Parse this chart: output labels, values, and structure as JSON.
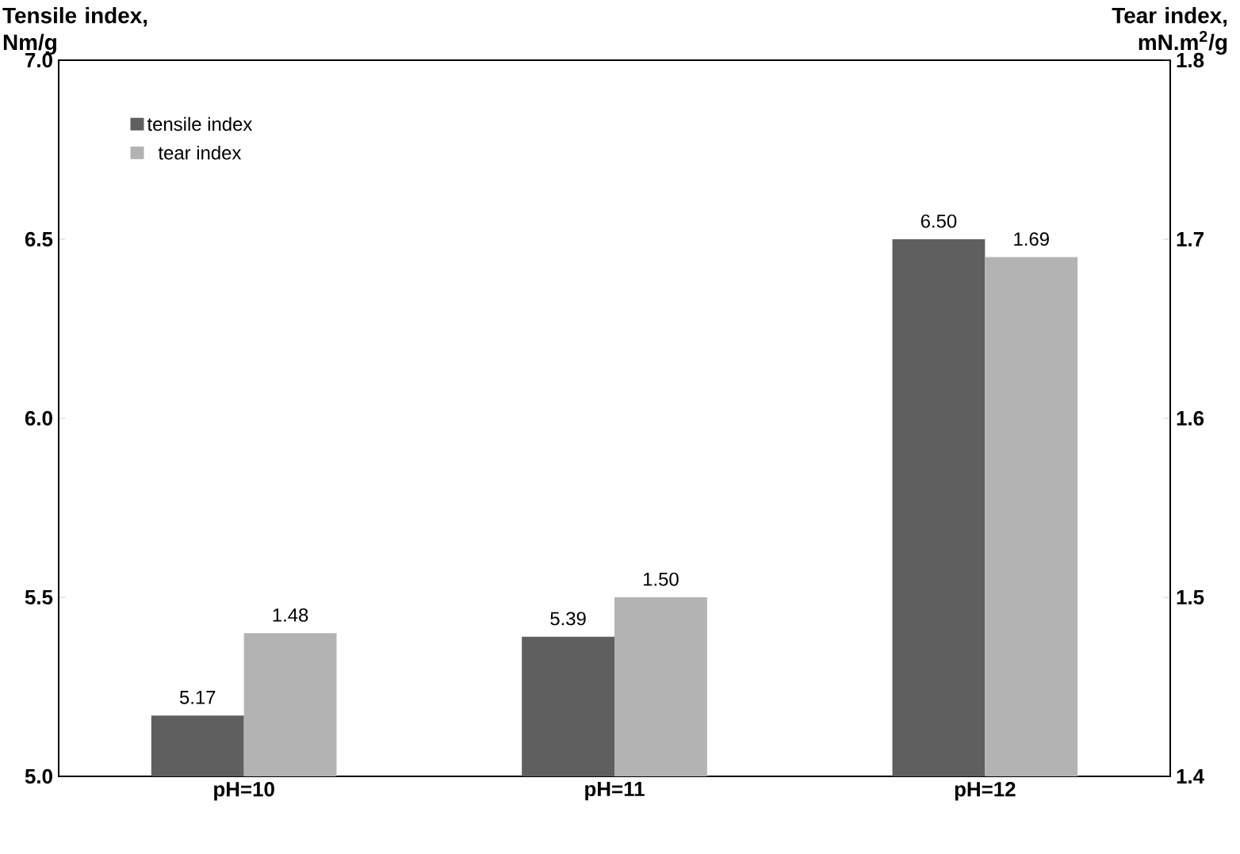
{
  "chart_data": {
    "type": "bar",
    "categories": [
      "pH=10",
      "pH=11",
      "pH=12"
    ],
    "ylabel": "Tensile index, Nm/g",
    "y2label": "Tear index, mN.m$^{2}$/g",
    "series": [
      {
        "name": "tensile index",
        "color": "#5f5f5f",
        "values": [
          5.17,
          5.39,
          6.5
        ],
        "value_labels": [
          "5.17",
          "5.39",
          "6.50"
        ]
      },
      {
        "name": "tear index",
        "color": "#b3b3b3",
        "values": [
          1.48,
          1.5,
          1.69
        ],
        "value_labels": [
          "1.48",
          "1.50",
          "1.69"
        ],
        "axis": "y2"
      }
    ],
    "ylim": [
      5.0,
      7.0
    ],
    "yticks": [
      {
        "value": 5.0,
        "label": "5.0"
      },
      {
        "value": 5.5,
        "label": "5.5"
      },
      {
        "value": 6.0,
        "label": "6.0"
      },
      {
        "value": 6.5,
        "label": "6.5"
      },
      {
        "value": 7.0,
        "label": "7.0"
      }
    ],
    "y2lim": [
      1.4,
      1.8
    ],
    "y2ticks": [
      1.4,
      1.5,
      1.6,
      1.7,
      1.8
    ],
    "legend": "top left",
    "grid": false
  }
}
